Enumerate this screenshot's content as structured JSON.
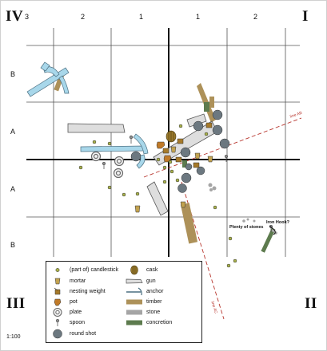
{
  "quadrants": {
    "tl": "IV",
    "tr": "I",
    "bl": "III",
    "br": "II"
  },
  "col_labels": [
    "3",
    "2",
    "1",
    "1",
    "2"
  ],
  "row_labels": [
    "B",
    "A",
    "A",
    "B"
  ],
  "scale": "1:100",
  "line_labels": {
    "ab": "line AB",
    "ac": "line AC"
  },
  "notes": {
    "iron_hook": "Iron Hook?",
    "stones": "Plenty of stones"
  },
  "legend": [
    {
      "icon": "candlestick",
      "label": "(part of) candlestick"
    },
    {
      "icon": "mortar",
      "label": "mortar"
    },
    {
      "icon": "nesting-weight",
      "label": "nesting weight"
    },
    {
      "icon": "pot",
      "label": "pot"
    },
    {
      "icon": "plate",
      "label": "plate"
    },
    {
      "icon": "spoon",
      "label": "spoon"
    },
    {
      "icon": "round-shot",
      "label": "round shot"
    },
    {
      "icon": "cask",
      "label": "cask"
    },
    {
      "icon": "gun",
      "label": "gun"
    },
    {
      "icon": "anchor",
      "label": "anchor"
    },
    {
      "icon": "timber",
      "label": "timber"
    },
    {
      "icon": "stone",
      "label": "stone"
    },
    {
      "icon": "concretion",
      "label": "concretion"
    }
  ],
  "colors": {
    "candlestick": "#a9b14a",
    "mortar": "#c2a24f",
    "weight": "#a67a2a",
    "pot": "#c07a28",
    "plate": "#8f8f8f",
    "shot": "#6c7880",
    "cask": "#9a7a2c",
    "gun": "#dedede",
    "anchor": "#a8d7ea",
    "timber": "#ad9159",
    "stone": "#a5a5a5",
    "concretion": "#5d7b4e",
    "redline": "#b7342c"
  }
}
